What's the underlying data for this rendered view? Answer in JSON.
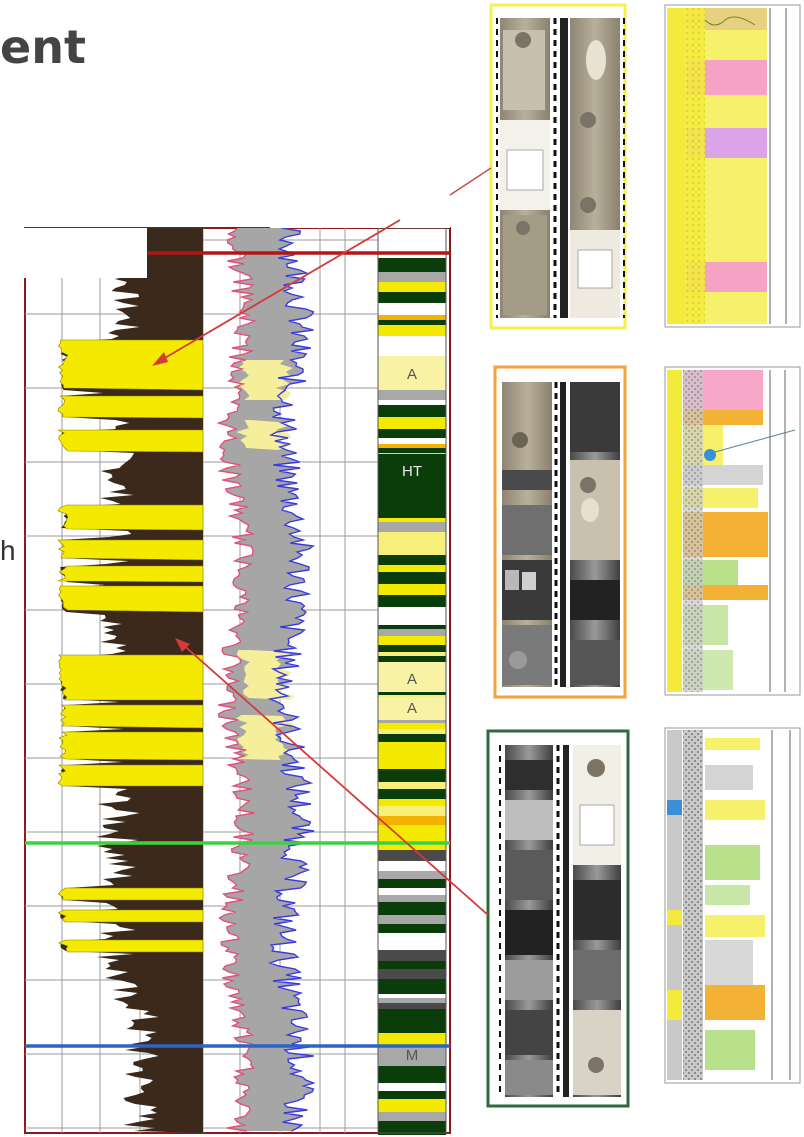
{
  "slide": {
    "title_fragment": "ent",
    "side_fragment": "h"
  },
  "facies_labels": [
    "A",
    "HT",
    "A",
    "A",
    "M"
  ],
  "colors": {
    "sand_yellow": "#f3ea00",
    "shale_dark": "#3b2a1c",
    "gamma_gray": "#a6a6a6",
    "curve_blue": "#3a3ae0",
    "curve_red": "#e0507a",
    "marker_red": "#b01818",
    "marker_green": "#3ed13e",
    "marker_blue": "#2d63c8",
    "core_frame_yellow": "#f6f04a",
    "core_frame_orange": "#f3a33a",
    "core_frame_green": "#2f6a3e",
    "pointer_red": "#d43a3a"
  }
}
